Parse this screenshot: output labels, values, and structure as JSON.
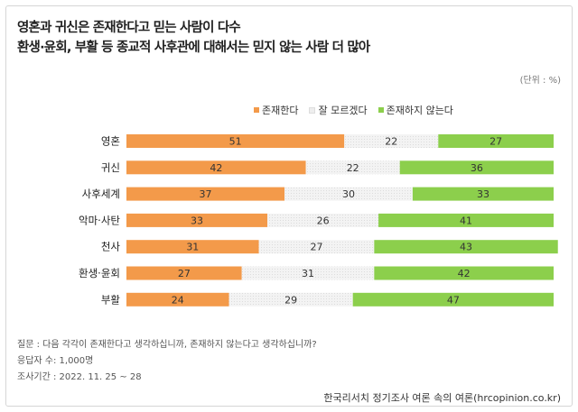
{
  "header": {
    "title_line1": "영혼과 귀신은 존재한다고 믿는 사람이 다수",
    "title_line2": "환생·윤회, 부활 등 종교적 사후관에 대해서는 믿지 않는 사람 더 많아",
    "unit": "(단위 : %)"
  },
  "colors": {
    "exist": "#f39a4a",
    "unsure": "#eeeeee",
    "not_exist": "#8ccf4c",
    "label": "#333333"
  },
  "chart_data": {
    "type": "bar",
    "orientation": "horizontal",
    "stacked": true,
    "categories": [
      "영혼",
      "귀신",
      "사후세계",
      "악마·사탄",
      "천사",
      "환생·윤회",
      "부활"
    ],
    "series": [
      {
        "name": "존재한다",
        "values": [
          51,
          42,
          37,
          33,
          31,
          27,
          24
        ]
      },
      {
        "name": "잘 모르겠다",
        "values": [
          22,
          22,
          30,
          26,
          27,
          31,
          29
        ]
      },
      {
        "name": "존재하지 않는다",
        "values": [
          27,
          36,
          33,
          41,
          43,
          42,
          47
        ]
      }
    ],
    "xlim": [
      0,
      100
    ],
    "legend_position": "top",
    "grid": false
  },
  "footer": {
    "question": "질문 : 다음 각각이 존재한다고 생각하십니까, 존재하지 않는다고 생각하십니까?",
    "sample": "응답자 수: 1,000명",
    "period": "조사기간 : 2022. 11. 25 ~ 28",
    "source": "한국리서치 정기조사 여론 속의 여론(hrcopinion.co.kr)"
  }
}
